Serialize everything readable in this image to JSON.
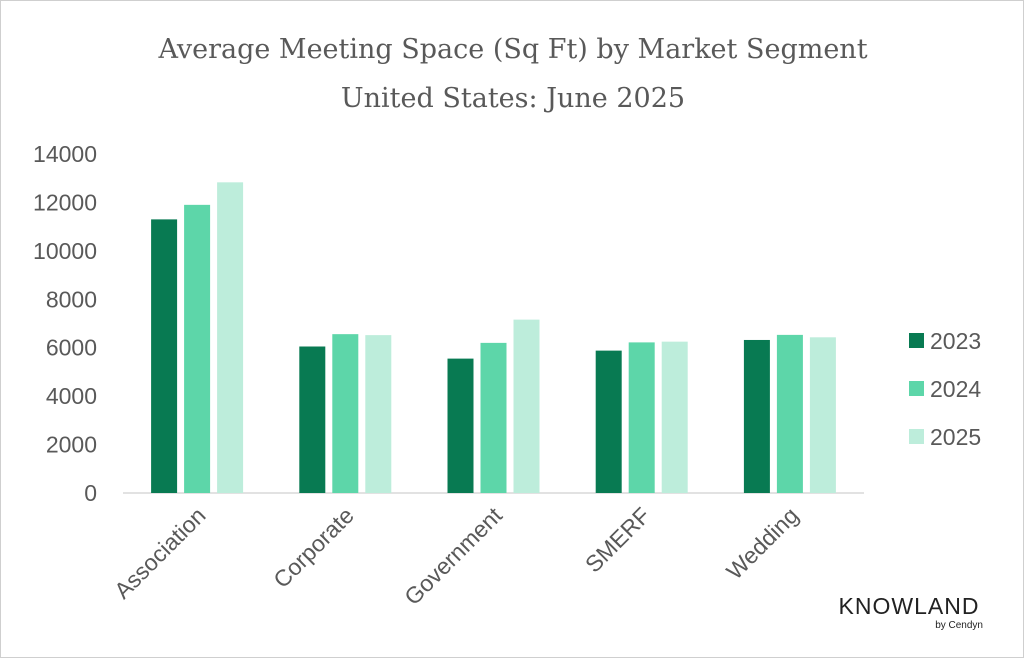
{
  "chart_data": {
    "type": "bar",
    "title": "Average Meeting Space (Sq Ft) by Market Segment",
    "subtitle": "United States: June 2025",
    "categories": [
      "Association",
      "Corporate",
      "Government",
      "SMERF",
      "Wedding"
    ],
    "series": [
      {
        "name": "2023",
        "color": "#087a52",
        "values": [
          11300,
          6050,
          5550,
          5880,
          6320
        ]
      },
      {
        "name": "2024",
        "color": "#5dd6a9",
        "values": [
          11900,
          6560,
          6200,
          6220,
          6530
        ]
      },
      {
        "name": "2025",
        "color": "#bdeddb",
        "values": [
          12830,
          6520,
          7160,
          6250,
          6430
        ]
      }
    ],
    "ylim": [
      0,
      14000
    ],
    "yticks": [
      "0",
      "2000",
      "4000",
      "6000",
      "8000",
      "10000",
      "12000",
      "14000"
    ],
    "xlabel": "",
    "ylabel": "",
    "grid": false,
    "legend_position": "right"
  },
  "brand": {
    "name": "KNOWLAND",
    "tagline": "by Cendyn"
  }
}
